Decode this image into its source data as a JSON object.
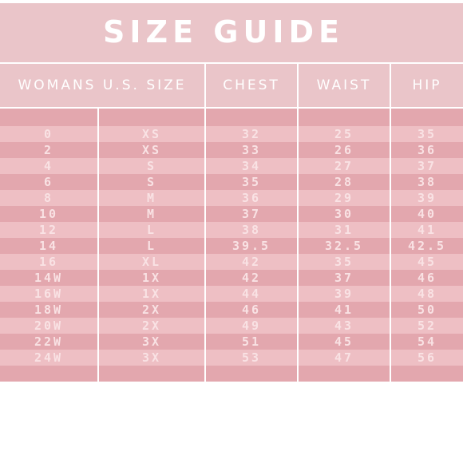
{
  "title": "SIZE GUIDE",
  "columns": [
    "WOMANS U.S. SIZE",
    "CHEST",
    "WAIST",
    "HIP"
  ],
  "rows": [
    {
      "us": "0",
      "letter": "XS",
      "chest": "32",
      "waist": "25",
      "hip": "35"
    },
    {
      "us": "2",
      "letter": "XS",
      "chest": "33",
      "waist": "26",
      "hip": "36"
    },
    {
      "us": "4",
      "letter": "S",
      "chest": "34",
      "waist": "27",
      "hip": "37"
    },
    {
      "us": "6",
      "letter": "S",
      "chest": "35",
      "waist": "28",
      "hip": "38"
    },
    {
      "us": "8",
      "letter": "M",
      "chest": "36",
      "waist": "29",
      "hip": "39"
    },
    {
      "us": "10",
      "letter": "M",
      "chest": "37",
      "waist": "30",
      "hip": "40"
    },
    {
      "us": "12",
      "letter": "L",
      "chest": "38",
      "waist": "31",
      "hip": "41"
    },
    {
      "us": "14",
      "letter": "L",
      "chest": "39.5",
      "waist": "32.5",
      "hip": "42.5"
    },
    {
      "us": "16",
      "letter": "XL",
      "chest": "42",
      "waist": "35",
      "hip": "45"
    },
    {
      "us": "14W",
      "letter": "1X",
      "chest": "42",
      "waist": "37",
      "hip": "46"
    },
    {
      "us": "16W",
      "letter": "1X",
      "chest": "44",
      "waist": "39",
      "hip": "48"
    },
    {
      "us": "18W",
      "letter": "2X",
      "chest": "46",
      "waist": "41",
      "hip": "50"
    },
    {
      "us": "20W",
      "letter": "2X",
      "chest": "49",
      "waist": "43",
      "hip": "52"
    },
    {
      "us": "22W",
      "letter": "3X",
      "chest": "51",
      "waist": "45",
      "hip": "54"
    },
    {
      "us": "24W",
      "letter": "3X",
      "chest": "53",
      "waist": "47",
      "hip": "56"
    }
  ],
  "colors": {
    "title_bg": "#eac5c9",
    "row_dark": "#e3a7ae",
    "row_light": "#eebfc4",
    "text": "#ffffff",
    "grid": "#ffffff"
  }
}
